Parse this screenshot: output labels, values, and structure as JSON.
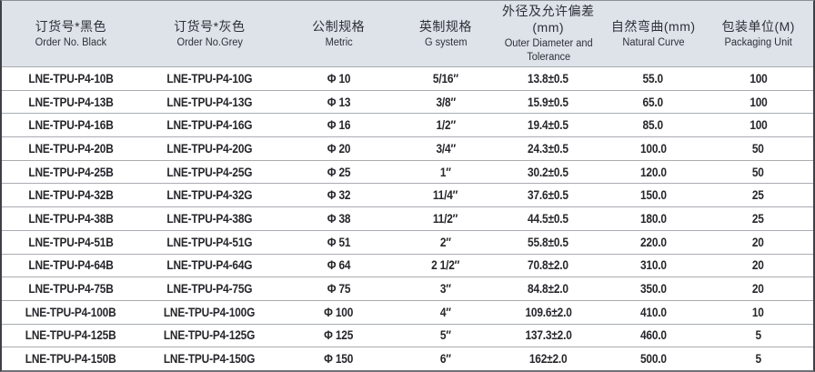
{
  "table": {
    "columns": [
      {
        "id": "order_black",
        "zh": "订货号*黑色",
        "en": "Order No. Black"
      },
      {
        "id": "order_grey",
        "zh": "订货号*灰色",
        "en": "Order No.Grey"
      },
      {
        "id": "metric",
        "zh": "公制规格",
        "en": "Metric"
      },
      {
        "id": "g_system",
        "zh": "英制规格",
        "en": "G system"
      },
      {
        "id": "outer_diameter",
        "zh": "外径及允许偏差(mm)",
        "en": "Outer Diameter and Tolerance"
      },
      {
        "id": "natural_curve",
        "zh": "自然弯曲(mm)",
        "en": "Natural Curve"
      },
      {
        "id": "packaging_unit",
        "zh": "包装单位(M)",
        "en": "Packaging Unit"
      }
    ],
    "rows": [
      [
        "LNE-TPU-P4-10B",
        "LNE-TPU-P4-10G",
        "Φ 10",
        "5/16″",
        "13.8±0.5",
        "55.0",
        "100"
      ],
      [
        "LNE-TPU-P4-13B",
        "LNE-TPU-P4-13G",
        "Φ 13",
        "3/8″",
        "15.9±0.5",
        "65.0",
        "100"
      ],
      [
        "LNE-TPU-P4-16B",
        "LNE-TPU-P4-16G",
        "Φ 16",
        "1/2″",
        "19.4±0.5",
        "85.0",
        "100"
      ],
      [
        "LNE-TPU-P4-20B",
        "LNE-TPU-P4-20G",
        "Φ 20",
        "3/4″",
        "24.3±0.5",
        "100.0",
        "50"
      ],
      [
        "LNE-TPU-P4-25B",
        "LNE-TPU-P4-25G",
        "Φ 25",
        "1″",
        "30.2±0.5",
        "120.0",
        "50"
      ],
      [
        "LNE-TPU-P4-32B",
        "LNE-TPU-P4-32G",
        "Φ 32",
        "11/4″",
        "37.6±0.5",
        "150.0",
        "25"
      ],
      [
        "LNE-TPU-P4-38B",
        "LNE-TPU-P4-38G",
        "Φ 38",
        "11/2″",
        "44.5±0.5",
        "180.0",
        "25"
      ],
      [
        "LNE-TPU-P4-51B",
        "LNE-TPU-P4-51G",
        "Φ 51",
        "2″",
        "55.8±0.5",
        "220.0",
        "20"
      ],
      [
        "LNE-TPU-P4-64B",
        "LNE-TPU-P4-64G",
        "Φ 64",
        "2 1/2″",
        "70.8±2.0",
        "310.0",
        "20"
      ],
      [
        "LNE-TPU-P4-75B",
        "LNE-TPU-P4-75G",
        "Φ 75",
        "3″",
        "84.8±2.0",
        "350.0",
        "20"
      ],
      [
        "LNE-TPU-P4-100B",
        "LNE-TPU-P4-100G",
        "Φ 100",
        "4″",
        "109.6±2.0",
        "410.0",
        "10"
      ],
      [
        "LNE-TPU-P4-125B",
        "LNE-TPU-P4-125G",
        "Φ 125",
        "5″",
        "137.3±2.0",
        "460.0",
        "5"
      ],
      [
        "LNE-TPU-P4-150B",
        "LNE-TPU-P4-150G",
        "Φ 150",
        "6″",
        "162±2.0",
        "500.0",
        "5"
      ]
    ],
    "colors": {
      "header_bg": "#dee2e9",
      "row_bg": "#ffffff",
      "separator": "#a9acb0",
      "text": "#26262b",
      "header_text": "#2e3038",
      "outer_border": "#3e4045"
    }
  }
}
